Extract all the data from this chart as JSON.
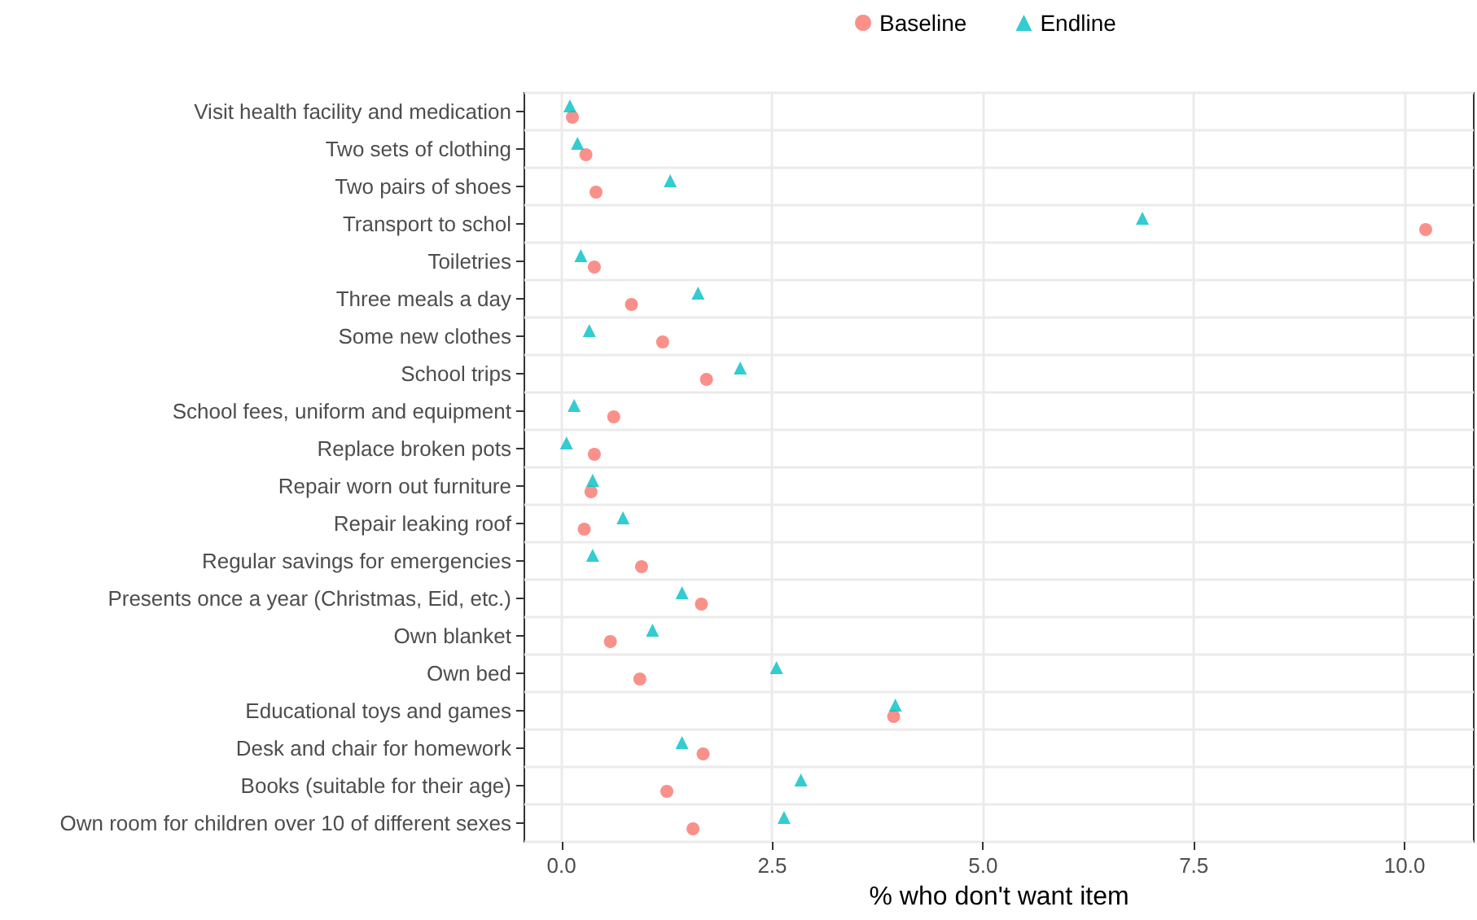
{
  "chart_data": {
    "type": "scatter",
    "orientation": "horizontal",
    "xlabel": "% who don't want item",
    "categories": [
      "Visit health facility and medication",
      "Two sets of clothing",
      "Two pairs of shoes",
      "Transport to schol",
      "Toiletries",
      "Three meals a day",
      "Some new clothes",
      "School trips",
      "School fees, uniform and equipment",
      "Replace broken pots",
      "Repair worn out furniture",
      "Repair leaking roof",
      "Regular savings for emergencies",
      "Presents once a year (Christmas, Eid, etc.)",
      "Own blanket",
      "Own bed",
      "Educational toys and games",
      "Desk and chair for homework",
      "Books (suitable for their age)",
      "Own room for children over 10 of different sexes"
    ],
    "series": [
      {
        "name": "Baseline",
        "color": "#f8766d",
        "marker": "circle",
        "values": [
          0.13,
          0.29,
          0.41,
          10.25,
          0.39,
          0.83,
          1.2,
          1.72,
          0.62,
          0.39,
          0.35,
          0.27,
          0.95,
          1.66,
          0.58,
          0.93,
          3.94,
          1.68,
          1.25,
          1.56
        ]
      },
      {
        "name": "Endline",
        "color": "#00bfc4",
        "marker": "triangle",
        "values": [
          0.1,
          0.19,
          1.29,
          6.89,
          0.23,
          1.62,
          0.33,
          2.12,
          0.15,
          0.06,
          0.37,
          0.73,
          0.37,
          1.43,
          1.08,
          2.55,
          3.96,
          1.43,
          2.84,
          2.64
        ]
      }
    ],
    "xlim": [
      -0.44,
      10.82
    ],
    "xticks": [
      {
        "value": 0,
        "label": "0.0"
      },
      {
        "value": 2.5,
        "label": "2.5"
      },
      {
        "value": 5,
        "label": "5.0"
      },
      {
        "value": 7.5,
        "label": "7.5"
      },
      {
        "value": 10,
        "label": "10.0"
      }
    ],
    "grid": true,
    "legend": "top"
  }
}
